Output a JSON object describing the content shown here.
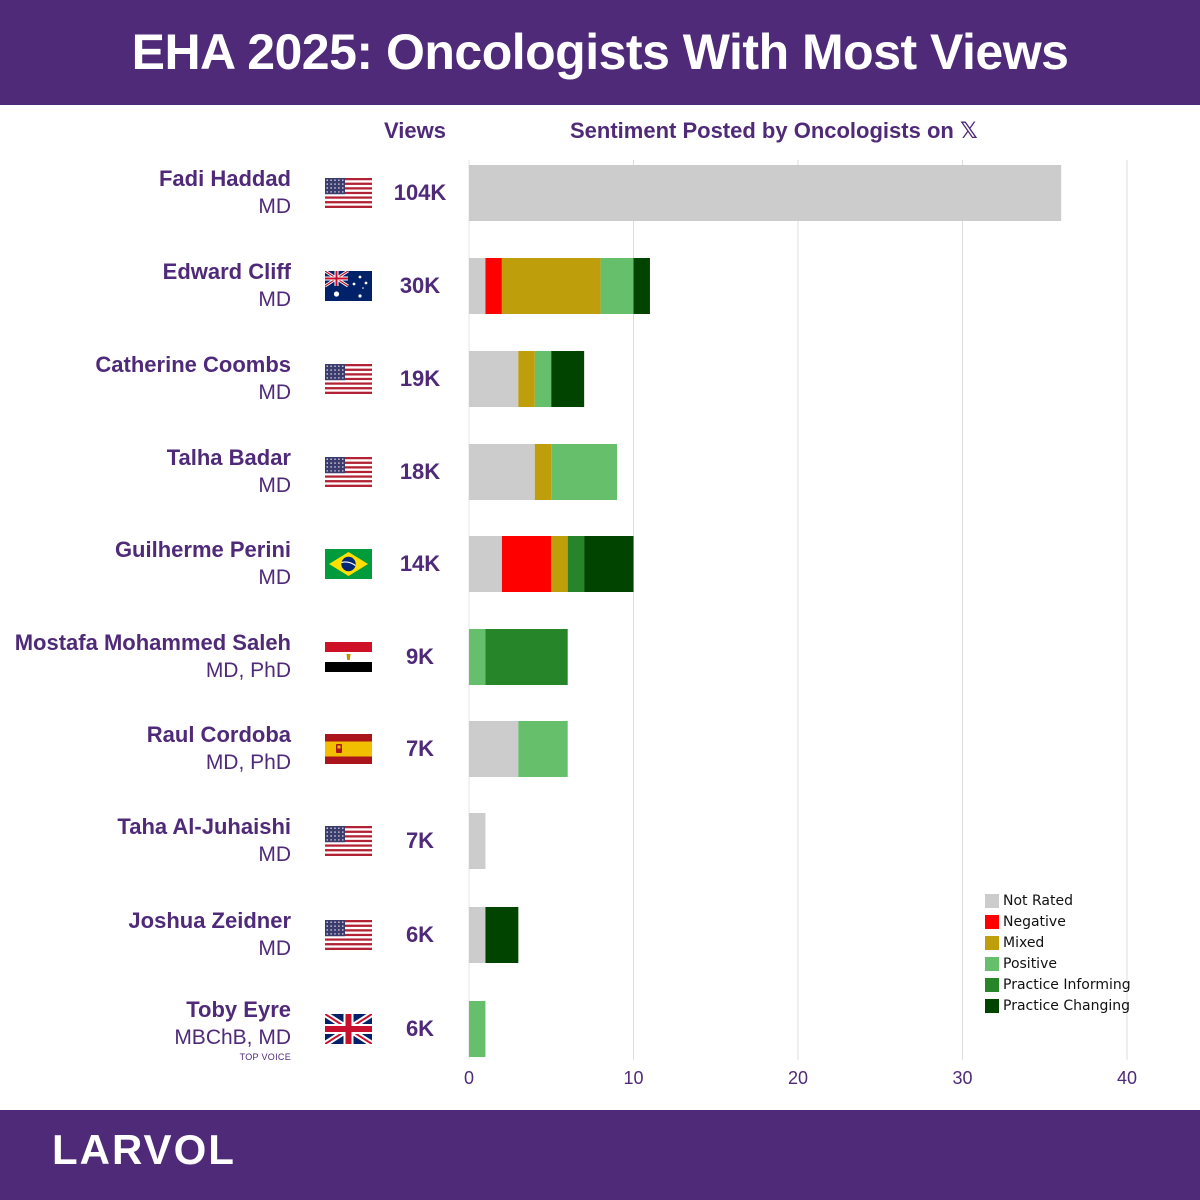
{
  "header": {
    "title": "EHA 2025: Oncologists With Most Views"
  },
  "columns": {
    "views": "Views",
    "sentiment": "Sentiment Posted by Oncologists on",
    "platform_icon": "𝕏"
  },
  "footer": {
    "brand": "LARVOL"
  },
  "colors": {
    "brand_purple": "#4f2a79",
    "not_rated": "#cccccc",
    "negative": "#ff0000",
    "mixed": "#bf9e0b",
    "positive": "#66bf6a",
    "practice_informing": "#268528",
    "practice_changing": "#014400"
  },
  "rows": [
    {
      "name": "Fadi Haddad",
      "degree": "MD",
      "badge": "",
      "flag": "us-flag",
      "views": "104K"
    },
    {
      "name": "Edward Cliff",
      "degree": "MD",
      "badge": "",
      "flag": "au-flag",
      "views": "30K"
    },
    {
      "name": "Catherine Coombs",
      "degree": "MD",
      "badge": "",
      "flag": "us-flag",
      "views": "19K"
    },
    {
      "name": "Talha Badar",
      "degree": "MD",
      "badge": "",
      "flag": "us-flag",
      "views": "18K"
    },
    {
      "name": "Guilherme Perini",
      "degree": "MD",
      "badge": "",
      "flag": "br-flag",
      "views": "14K"
    },
    {
      "name": "Mostafa Mohammed Saleh",
      "degree": "MD, PhD",
      "badge": "",
      "flag": "eg-flag",
      "views": "9K"
    },
    {
      "name": "Raul Cordoba",
      "degree": "MD, PhD",
      "badge": "",
      "flag": "es-flag",
      "views": "7K"
    },
    {
      "name": "Taha Al-Juhaishi",
      "degree": "MD",
      "badge": "",
      "flag": "us-flag",
      "views": "7K"
    },
    {
      "name": "Joshua Zeidner",
      "degree": "MD",
      "badge": "",
      "flag": "us-flag",
      "views": "6K"
    },
    {
      "name": "Toby Eyre",
      "degree": "MBChB, MD",
      "badge": "TOP VOICE",
      "flag": "gb-flag",
      "views": "6K"
    }
  ],
  "chart_data": {
    "type": "bar",
    "orientation": "horizontal",
    "stacked": true,
    "categories": [
      "Fadi Haddad",
      "Edward Cliff",
      "Catherine Coombs",
      "Talha Badar",
      "Guilherme Perini",
      "Mostafa Mohammed Saleh",
      "Raul Cordoba",
      "Taha Al-Juhaishi",
      "Joshua Zeidner",
      "Toby Eyre"
    ],
    "series": [
      {
        "name": "Not Rated",
        "color": "#cccccc",
        "values": [
          36,
          1,
          3,
          4,
          2,
          0,
          3,
          1,
          1,
          0
        ]
      },
      {
        "name": "Negative",
        "color": "#ff0000",
        "values": [
          0,
          1,
          0,
          0,
          3,
          0,
          0,
          0,
          0,
          0
        ]
      },
      {
        "name": "Mixed",
        "color": "#bf9e0b",
        "values": [
          0,
          6,
          1,
          1,
          1,
          0,
          0,
          0,
          0,
          0
        ]
      },
      {
        "name": "Positive",
        "color": "#66bf6a",
        "values": [
          0,
          2,
          1,
          4,
          0,
          1,
          3,
          0,
          0,
          1
        ]
      },
      {
        "name": "Practice Informing",
        "color": "#268528",
        "values": [
          0,
          0,
          0,
          0,
          1,
          5,
          0,
          0,
          0,
          0
        ]
      },
      {
        "name": "Practice Changing",
        "color": "#014400",
        "values": [
          0,
          1,
          2,
          0,
          3,
          0,
          0,
          0,
          2,
          0
        ]
      }
    ],
    "xlim": [
      0,
      40
    ],
    "xticks": [
      0,
      10,
      20,
      30,
      40
    ],
    "grid": true,
    "legend": "bottom-right"
  }
}
